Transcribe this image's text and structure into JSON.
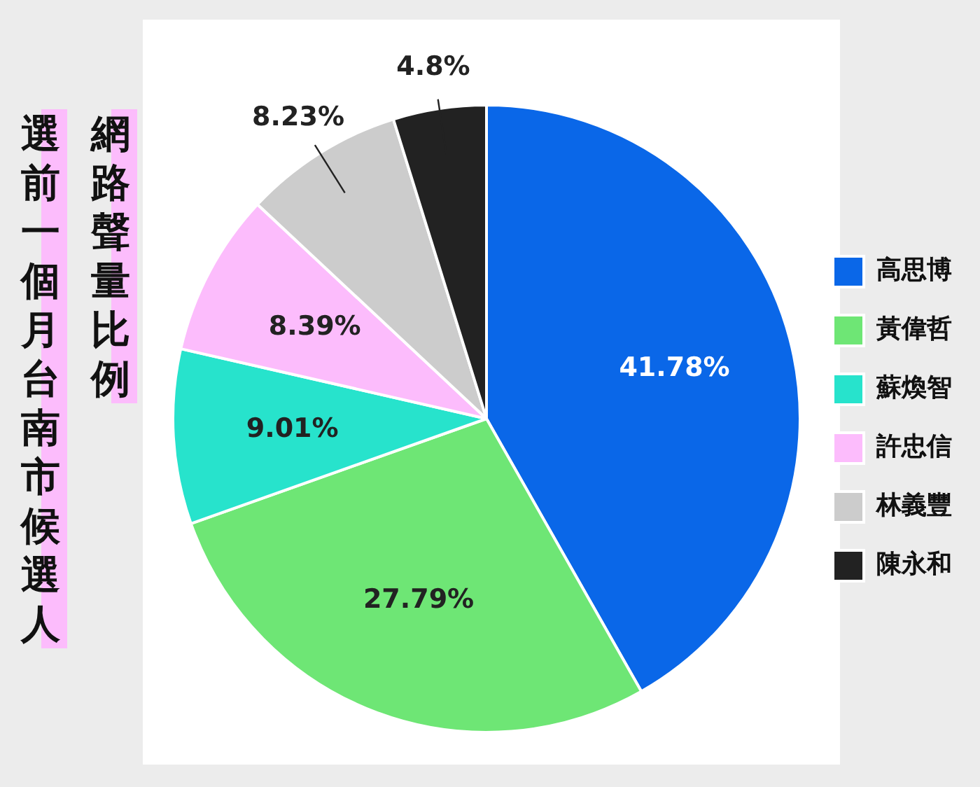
{
  "chart_data": {
    "type": "pie",
    "title": "選前一個月台南市候選人",
    "subtitle": "網路聲量比例",
    "categories": [
      "高思博",
      "黃偉哲",
      "蘇煥智",
      "許忠信",
      "林義豐",
      "陳永和"
    ],
    "values": [
      41.78,
      27.79,
      9.01,
      8.39,
      8.23,
      4.8
    ],
    "colors": [
      "#0a67e8",
      "#6ee675",
      "#27e3cc",
      "#fcbcfc",
      "#cccccc",
      "#222222"
    ],
    "value_labels": [
      "41.78%",
      "27.79%",
      "9.01%",
      "8.39%",
      "8.23%",
      "4.8%"
    ],
    "legend": "right"
  }
}
